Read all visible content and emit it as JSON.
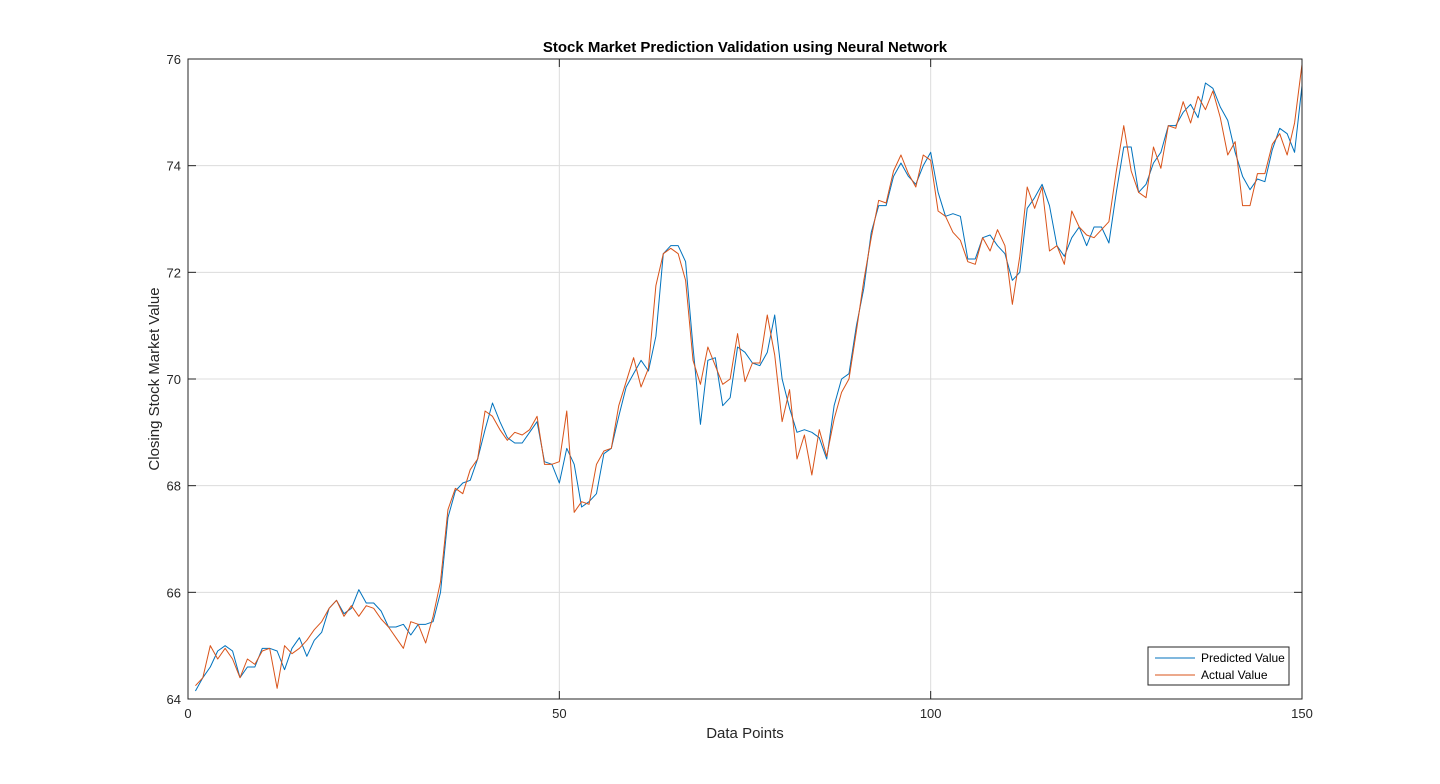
{
  "chart_data": {
    "type": "line",
    "title": "Stock Market Prediction Validation using Neural Network",
    "xlabel": "Data Points",
    "ylabel": "Closing Stock Market Value",
    "xlim": [
      0,
      150
    ],
    "ylim": [
      64,
      76
    ],
    "xticks": [
      0,
      50,
      100,
      150
    ],
    "yticks": [
      64,
      66,
      68,
      70,
      72,
      74,
      76
    ],
    "xtick_labels": [
      "0",
      "50",
      "100",
      "150"
    ],
    "ytick_labels": [
      "64",
      "66",
      "68",
      "70",
      "72",
      "74",
      "76"
    ],
    "grid": true,
    "legend_position": "bottom-right",
    "series": [
      {
        "name": "Predicted Value",
        "color": "#0072BD",
        "x": [
          1,
          2,
          3,
          4,
          5,
          6,
          7,
          8,
          9,
          10,
          11,
          12,
          13,
          14,
          15,
          16,
          17,
          18,
          19,
          20,
          21,
          22,
          23,
          24,
          25,
          26,
          27,
          28,
          29,
          30,
          31,
          32,
          33,
          34,
          35,
          36,
          37,
          38,
          39,
          40,
          41,
          42,
          43,
          44,
          45,
          46,
          47,
          48,
          49,
          50,
          51,
          52,
          53,
          54,
          55,
          56,
          57,
          58,
          59,
          60,
          61,
          62,
          63,
          64,
          65,
          66,
          67,
          68,
          69,
          70,
          71,
          72,
          73,
          74,
          75,
          76,
          77,
          78,
          79,
          80,
          81,
          82,
          83,
          84,
          85,
          86,
          87,
          88,
          89,
          90,
          91,
          92,
          93,
          94,
          95,
          96,
          97,
          98,
          99,
          100,
          101,
          102,
          103,
          104,
          105,
          106,
          107,
          108,
          109,
          110,
          111,
          112,
          113,
          114,
          115,
          116,
          117,
          118,
          119,
          120,
          121,
          122,
          123,
          124,
          125,
          126,
          127,
          128,
          129,
          130,
          131,
          132,
          133,
          134,
          135,
          136,
          137,
          138,
          139,
          140,
          141,
          142,
          143,
          144,
          145,
          146,
          147,
          148,
          149,
          150
        ],
        "values": [
          64.15,
          64.4,
          64.6,
          64.9,
          65.0,
          64.9,
          64.4,
          64.6,
          64.6,
          64.95,
          64.95,
          64.9,
          64.55,
          64.95,
          65.15,
          64.8,
          65.1,
          65.25,
          65.7,
          65.85,
          65.6,
          65.7,
          66.05,
          65.8,
          65.8,
          65.65,
          65.35,
          65.35,
          65.4,
          65.2,
          65.4,
          65.4,
          65.45,
          66.0,
          67.4,
          67.9,
          68.05,
          68.1,
          68.5,
          69.05,
          69.55,
          69.2,
          68.9,
          68.8,
          68.8,
          69.0,
          69.2,
          68.45,
          68.4,
          68.05,
          68.7,
          68.4,
          67.6,
          67.7,
          67.85,
          68.6,
          68.7,
          69.3,
          69.85,
          70.1,
          70.35,
          70.15,
          70.8,
          72.35,
          72.5,
          72.5,
          72.2,
          70.6,
          69.15,
          70.35,
          70.4,
          69.5,
          69.65,
          70.6,
          70.5,
          70.3,
          70.25,
          70.5,
          71.2,
          70.0,
          69.45,
          69.0,
          69.05,
          69.0,
          68.9,
          68.5,
          69.5,
          70.0,
          70.1,
          71.0,
          71.7,
          72.75,
          73.25,
          73.25,
          73.8,
          74.05,
          73.8,
          73.65,
          74.0,
          74.25,
          73.5,
          73.05,
          73.1,
          73.05,
          72.25,
          72.25,
          72.65,
          72.7,
          72.5,
          72.35,
          71.85,
          72.0,
          73.2,
          73.4,
          73.65,
          73.25,
          72.5,
          72.3,
          72.65,
          72.85,
          72.5,
          72.85,
          72.85,
          72.55,
          73.5,
          74.35,
          74.35,
          73.5,
          73.65,
          74.05,
          74.25,
          74.75,
          74.75,
          75.0,
          75.15,
          74.9,
          75.55,
          75.45,
          75.1,
          74.85,
          74.25,
          73.8,
          73.55,
          73.75,
          73.7,
          74.3,
          74.7,
          74.6,
          74.25,
          75.5
        ]
      },
      {
        "name": "Actual Value",
        "color": "#D95319",
        "x": [
          1,
          2,
          3,
          4,
          5,
          6,
          7,
          8,
          9,
          10,
          11,
          12,
          13,
          14,
          15,
          16,
          17,
          18,
          19,
          20,
          21,
          22,
          23,
          24,
          25,
          26,
          27,
          28,
          29,
          30,
          31,
          32,
          33,
          34,
          35,
          36,
          37,
          38,
          39,
          40,
          41,
          42,
          43,
          44,
          45,
          46,
          47,
          48,
          49,
          50,
          51,
          52,
          53,
          54,
          55,
          56,
          57,
          58,
          59,
          60,
          61,
          62,
          63,
          64,
          65,
          66,
          67,
          68,
          69,
          70,
          71,
          72,
          73,
          74,
          75,
          76,
          77,
          78,
          79,
          80,
          81,
          82,
          83,
          84,
          85,
          86,
          87,
          88,
          89,
          90,
          91,
          92,
          93,
          94,
          95,
          96,
          97,
          98,
          99,
          100,
          101,
          102,
          103,
          104,
          105,
          106,
          107,
          108,
          109,
          110,
          111,
          112,
          113,
          114,
          115,
          116,
          117,
          118,
          119,
          120,
          121,
          122,
          123,
          124,
          125,
          126,
          127,
          128,
          129,
          130,
          131,
          132,
          133,
          134,
          135,
          136,
          137,
          138,
          139,
          140,
          141,
          142,
          143,
          144,
          145,
          146,
          147,
          148,
          149,
          150
        ],
        "values": [
          64.25,
          64.4,
          65.0,
          64.75,
          64.95,
          64.75,
          64.4,
          64.75,
          64.65,
          64.9,
          64.95,
          64.2,
          65.0,
          64.85,
          64.95,
          65.1,
          65.3,
          65.45,
          65.7,
          65.85,
          65.55,
          65.75,
          65.55,
          65.75,
          65.7,
          65.5,
          65.35,
          65.15,
          64.95,
          65.45,
          65.4,
          65.05,
          65.55,
          66.2,
          67.55,
          67.95,
          67.85,
          68.3,
          68.5,
          69.4,
          69.3,
          69.05,
          68.85,
          69.0,
          68.95,
          69.05,
          69.3,
          68.4,
          68.4,
          68.45,
          69.4,
          67.5,
          67.7,
          67.65,
          68.4,
          68.65,
          68.7,
          69.5,
          69.95,
          70.4,
          69.85,
          70.2,
          71.75,
          72.35,
          72.45,
          72.35,
          71.85,
          70.35,
          69.9,
          70.6,
          70.25,
          69.9,
          70.0,
          70.85,
          69.95,
          70.3,
          70.3,
          71.2,
          70.45,
          69.2,
          69.8,
          68.5,
          68.95,
          68.2,
          69.05,
          68.55,
          69.25,
          69.75,
          70.0,
          70.9,
          71.85,
          72.65,
          73.35,
          73.3,
          73.9,
          74.2,
          73.85,
          73.6,
          74.2,
          74.1,
          73.15,
          73.05,
          72.75,
          72.6,
          72.2,
          72.15,
          72.65,
          72.4,
          72.8,
          72.5,
          71.4,
          72.3,
          73.6,
          73.2,
          73.6,
          72.4,
          72.5,
          72.15,
          73.15,
          72.85,
          72.7,
          72.65,
          72.8,
          72.95,
          73.9,
          74.75,
          73.9,
          73.5,
          73.4,
          74.35,
          73.95,
          74.75,
          74.7,
          75.2,
          74.8,
          75.3,
          75.05,
          75.4,
          74.9,
          74.2,
          74.45,
          73.25,
          73.25,
          73.85,
          73.85,
          74.4,
          74.6,
          74.2,
          74.8,
          75.9
        ]
      }
    ]
  }
}
